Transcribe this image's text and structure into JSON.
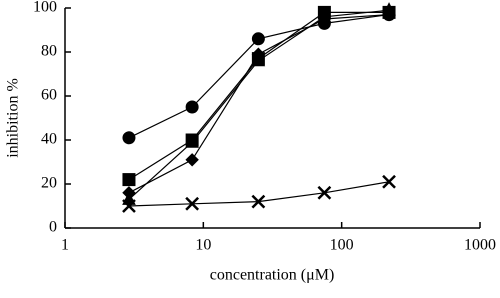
{
  "chart_data": {
    "type": "line",
    "x_label": "concentration (μM)",
    "y_label": "inhibition %",
    "x": [
      2.9,
      8.3,
      25,
      75,
      220
    ],
    "series": [
      {
        "marker": "circle",
        "color": "#000000",
        "values": [
          41,
          55,
          86,
          93,
          97
        ]
      },
      {
        "marker": "square",
        "color": "#000000",
        "values": [
          22,
          40,
          77,
          98,
          98
        ]
      },
      {
        "marker": "diamond",
        "color": "#000000",
        "values": [
          16,
          31,
          79,
          95,
          97
        ]
      },
      {
        "marker": "triangle",
        "color": "#000000",
        "values": [
          13,
          39,
          76,
          96,
          99
        ]
      },
      {
        "marker": "cross",
        "color": "#000000",
        "values": [
          10,
          11,
          12,
          16,
          21
        ]
      }
    ],
    "xlim": [
      1,
      1000
    ],
    "xticks": [
      1,
      10,
      100,
      1000
    ],
    "xscale": "log",
    "ylim": [
      0,
      100
    ],
    "yticks": [
      0,
      20,
      40,
      60,
      80,
      100
    ],
    "grid": false
  }
}
